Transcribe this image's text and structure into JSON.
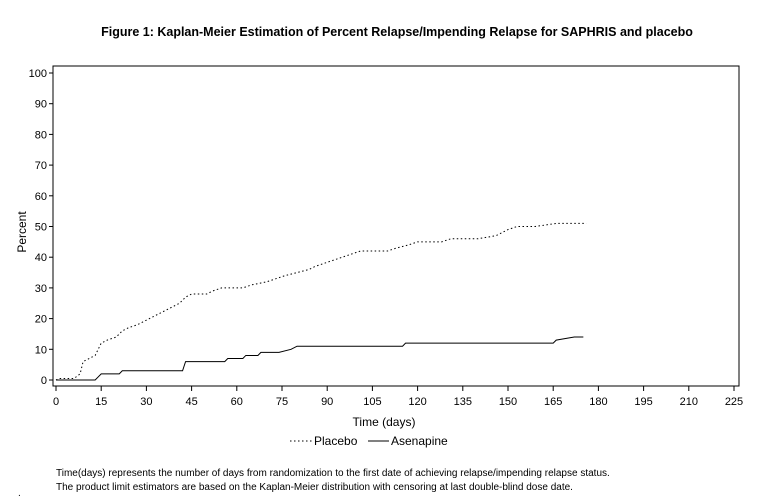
{
  "chart_data": {
    "type": "line",
    "title": "Figure 1: Kaplan-Meier Estimation of Percent Relapse/Impending Relapse for SAPHRIS and placebo",
    "xlabel": "Time (days)",
    "ylabel": "Percent",
    "xlim": [
      0,
      225
    ],
    "ylim": [
      0,
      100
    ],
    "x_ticks": [
      0,
      15,
      30,
      45,
      60,
      75,
      90,
      105,
      120,
      135,
      150,
      165,
      180,
      195,
      210,
      225
    ],
    "y_ticks": [
      0,
      10,
      20,
      30,
      40,
      50,
      60,
      70,
      80,
      90,
      100
    ],
    "grid": false,
    "legend_position": "bottom-center",
    "series": [
      {
        "name": "Placebo",
        "style": "dotted",
        "color": "#000000",
        "points": [
          [
            0,
            0
          ],
          [
            1,
            0.5
          ],
          [
            6,
            0.5
          ],
          [
            8,
            2
          ],
          [
            9,
            6
          ],
          [
            11,
            7
          ],
          [
            13,
            8
          ],
          [
            14,
            10
          ],
          [
            15,
            12
          ],
          [
            17,
            13
          ],
          [
            20,
            14
          ],
          [
            22,
            16
          ],
          [
            24,
            17
          ],
          [
            27,
            18
          ],
          [
            29,
            19
          ],
          [
            31,
            20
          ],
          [
            33,
            21
          ],
          [
            35,
            22
          ],
          [
            37,
            23
          ],
          [
            39,
            24
          ],
          [
            41,
            25
          ],
          [
            43,
            27
          ],
          [
            45,
            28
          ],
          [
            50,
            28
          ],
          [
            52,
            29
          ],
          [
            55,
            30
          ],
          [
            62,
            30
          ],
          [
            65,
            31
          ],
          [
            70,
            32
          ],
          [
            73,
            33
          ],
          [
            76,
            34
          ],
          [
            80,
            35
          ],
          [
            84,
            36
          ],
          [
            86,
            37
          ],
          [
            89,
            38
          ],
          [
            92,
            39
          ],
          [
            95,
            40
          ],
          [
            98,
            41
          ],
          [
            101,
            42
          ],
          [
            110,
            42
          ],
          [
            113,
            43
          ],
          [
            117,
            44
          ],
          [
            120,
            45
          ],
          [
            128,
            45
          ],
          [
            131,
            46
          ],
          [
            140,
            46
          ],
          [
            146,
            47
          ],
          [
            148,
            48
          ],
          [
            150,
            49
          ],
          [
            153,
            50
          ],
          [
            159,
            50
          ],
          [
            166,
            51
          ],
          [
            176,
            51
          ]
        ]
      },
      {
        "name": "Asenapine",
        "style": "solid",
        "color": "#000000",
        "points": [
          [
            0,
            0
          ],
          [
            13,
            0
          ],
          [
            14,
            1
          ],
          [
            15,
            2
          ],
          [
            21,
            2
          ],
          [
            22,
            3
          ],
          [
            42,
            3
          ],
          [
            43,
            6
          ],
          [
            56,
            6
          ],
          [
            57,
            7
          ],
          [
            62,
            7
          ],
          [
            63,
            8
          ],
          [
            67,
            8
          ],
          [
            68,
            9
          ],
          [
            74,
            9
          ],
          [
            78,
            10
          ],
          [
            80,
            11
          ],
          [
            115,
            11
          ],
          [
            116,
            12
          ],
          [
            165,
            12
          ],
          [
            166,
            13
          ],
          [
            172,
            14
          ],
          [
            175,
            14
          ]
        ]
      }
    ]
  },
  "footnotes": [
    "Time(days) represents the number of days from randomization to the first date of achieving relapse/impending relapse status.",
    "The product limit estimators are based on the Kaplan-Meier distribution with censoring at last double-blind dose date."
  ],
  "corner_mark": "."
}
